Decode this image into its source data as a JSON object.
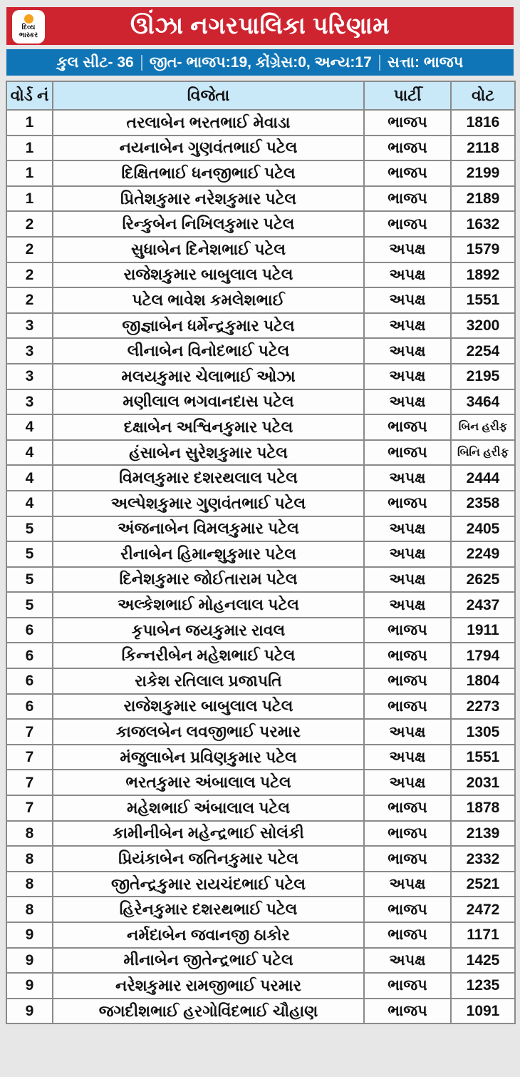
{
  "colors": {
    "banner_red": "#ce2430",
    "bar_blue": "#1075b6",
    "header_cell_bg": "#c9e8f8",
    "page_bg": "#e7e7e7",
    "grid_line": "#8a8a8a",
    "logo_orange": "#f5a21c"
  },
  "header": {
    "title": "ઊંઝા નગરપાલિકા પરિણામ",
    "logo_line1": "દિવ્ય",
    "logo_line2": "ભાસ્કર"
  },
  "summary": {
    "total_seats": "કુલ સીટ- 36",
    "wins": "જીત- ભાજપ:19, કોંગ્રેસ:0, અન્ય:17",
    "ruling": "સત્તા: ભાજપ"
  },
  "chart_data": {
    "type": "table",
    "title": "ઊંઝા નગરપાલિકા પરિણામ",
    "columns": [
      "વોર્ડ નં",
      "વિજેતા",
      "પાર્ટી",
      "વોટ"
    ],
    "rows": [
      [
        "1",
        "તરલાબેન ભરતભાઈ મેવાડા",
        "ભાજપ",
        "1816"
      ],
      [
        "1",
        "નયનાબેન ગુણવંતભાઈ પટેલ",
        "ભાજપ",
        "2118"
      ],
      [
        "1",
        "દિક્ષિતભાઈ ધનજીભાઈ પટેલ",
        "ભાજપ",
        "2199"
      ],
      [
        "1",
        "પ્રિતેશકુમાર નરેશકુમાર પટેલ",
        "ભાજપ",
        "2189"
      ],
      [
        "2",
        "રિન્કુબેન નિખિલકુમાર પટેલ",
        "ભાજપ",
        "1632"
      ],
      [
        "2",
        "સુધાબેન દિનેશભાઈ પટેલ",
        "અપક્ષ",
        "1579"
      ],
      [
        "2",
        "રાજેશકુમાર બાબુલાલ પટેલ",
        "અપક્ષ",
        "1892"
      ],
      [
        "2",
        "પટેલ ભાવેશ કમલેશભાઈ",
        "અપક્ષ",
        "1551"
      ],
      [
        "3",
        "જીજ્ઞાબેન ધર્મેન્દ્રકુમાર પટેલ",
        "અપક્ષ",
        "3200"
      ],
      [
        "3",
        "લીનાબેન વિનોદભાઈ પટેલ",
        "અપક્ષ",
        "2254"
      ],
      [
        "3",
        "મલયકુમાર ચેલાભાઈ ઓઝા",
        "અપક્ષ",
        "2195"
      ],
      [
        "3",
        "મણીલાલ ભગવાનદાસ પટેલ",
        "અપક્ષ",
        "3464"
      ],
      [
        "4",
        "દક્ષાબેન અશ્વિનકુમાર પટેલ",
        "ભાજપ",
        "બિન હરીફ"
      ],
      [
        "4",
        "હંસાબેન સુરેશકુમાર પટેલ",
        "ભાજપ",
        "બિનિ હરીફ"
      ],
      [
        "4",
        "વિમલકુમાર દશરથલાલ પટેલ",
        "અપક્ષ",
        "2444"
      ],
      [
        "4",
        "અલ્પેશકુમાર ગુણવંતભાઈ પટેલ",
        "ભાજપ",
        "2358"
      ],
      [
        "5",
        "અંજનાબેન વિમલકુમાર પટેલ",
        "અપક્ષ",
        "2405"
      ],
      [
        "5",
        "રીનાબેન હિમાન્શુકુમાર પટેલ",
        "અપક્ષ",
        "2249"
      ],
      [
        "5",
        "દિનેશકુમાર જોઈતારામ પટેલ",
        "અપક્ષ",
        "2625"
      ],
      [
        "5",
        "અલ્કેશભાઈ મોહનલાલ પટેલ",
        "અપક્ષ",
        "2437"
      ],
      [
        "6",
        "કૃપાબેન જયકુમાર રાવલ",
        "ભાજપ",
        "1911"
      ],
      [
        "6",
        "કિન્નરીબેન મહેશભાઈ પટેલ",
        "ભાજપ",
        "1794"
      ],
      [
        "6",
        "રાકેશ રતિલાલ પ્રજાપતિ",
        "ભાજપ",
        "1804"
      ],
      [
        "6",
        "રાજેશકુમાર બાબુલાલ પટેલ",
        "ભાજપ",
        "2273"
      ],
      [
        "7",
        "કાજલબેન લવજીભાઈ પરમાર",
        "અપક્ષ",
        "1305"
      ],
      [
        "7",
        "મંજુલાબેન પ્રવિણકુમાર પટેલ",
        "અપક્ષ",
        "1551"
      ],
      [
        "7",
        "ભરતકુમાર અંબાલાલ પટેલ",
        "અપક્ષ",
        "2031"
      ],
      [
        "7",
        "મહેશભાઈ અંબાલાલ પટેલ",
        "ભાજપ",
        "1878"
      ],
      [
        "8",
        "કામીનીબેન મહેન્દ્રભાઈ સોલંકી",
        "ભાજપ",
        "2139"
      ],
      [
        "8",
        "પ્રિયંકાબેન જતિનકુમાર પટેલ",
        "ભાજપ",
        "2332"
      ],
      [
        "8",
        "જીતેન્દ્રકુમાર રાયચંદભાઈ પટેલ",
        "અપક્ષ",
        "2521"
      ],
      [
        "8",
        "હિરેનકુમાર દશરથભાઈ પટેલ",
        "ભાજપ",
        "2472"
      ],
      [
        "9",
        "નર્મદાબેન જવાનજી ઠાકોર",
        "ભાજપ",
        "1171"
      ],
      [
        "9",
        "મીનાબેન જીતેન્દ્રભાઈ પટેલ",
        "અપક્ષ",
        "1425"
      ],
      [
        "9",
        "નરેશકુમાર રામજીભાઈ પરમાર",
        "ભાજપ",
        "1235"
      ],
      [
        "9",
        "જગદીશભાઈ હરગોવિંદભાઈ ચૌહાણ",
        "ભાજપ",
        "1091"
      ]
    ]
  }
}
